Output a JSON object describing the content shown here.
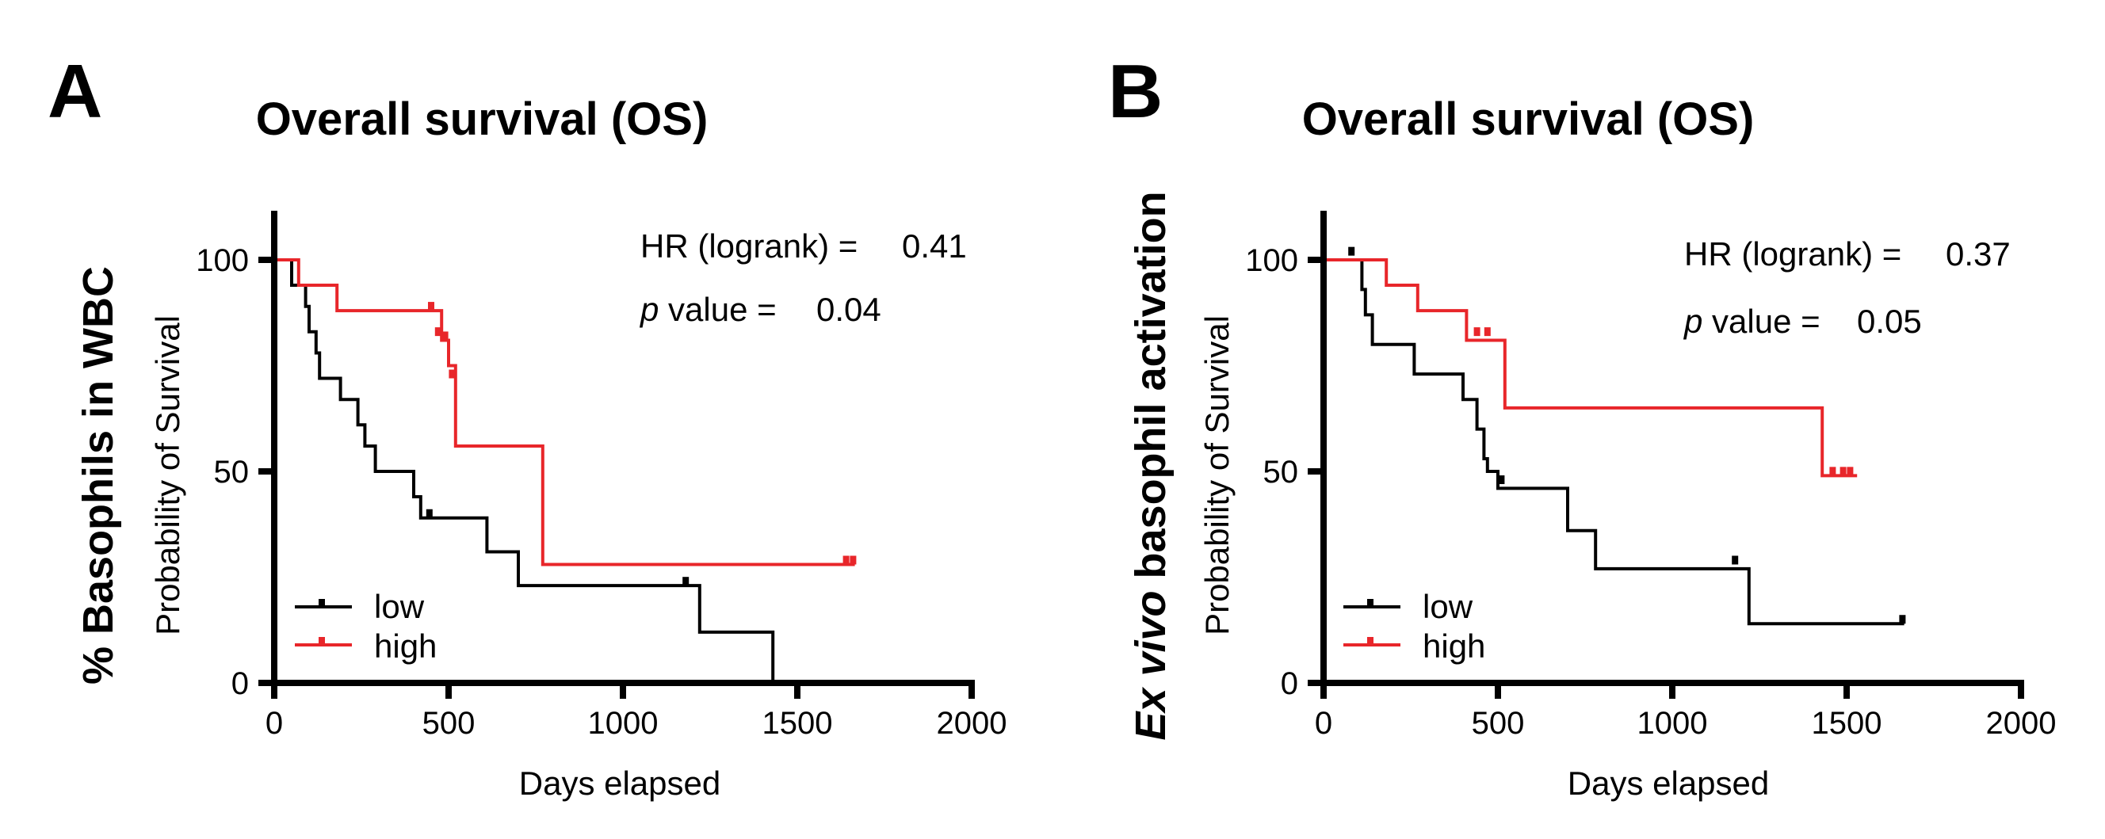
{
  "chart_data": [
    {
      "type": "line",
      "panel_letter": "A",
      "title": "Overall survival (OS)",
      "side_label": "% Basophils in WBC",
      "side_label_italic": "",
      "xlabel": "Days elapsed",
      "ylabel": "Probability of Survival",
      "xlim": [
        0,
        2000
      ],
      "ylim": [
        0,
        100
      ],
      "xticks": [
        0,
        500,
        1000,
        1500,
        2000
      ],
      "yticks": [
        0,
        50,
        100
      ],
      "hr_label": "HR (logrank) =",
      "hr_value": "0.41",
      "p_label_italic": "p",
      "p_label": " value =",
      "p_value": "0.04",
      "series": [
        {
          "name": "low",
          "color": "#000000",
          "steps": [
            [
              0,
              100
            ],
            [
              50,
              94
            ],
            [
              90,
              89
            ],
            [
              100,
              83
            ],
            [
              120,
              78
            ],
            [
              130,
              72
            ],
            [
              190,
              67
            ],
            [
              240,
              61
            ],
            [
              260,
              56
            ],
            [
              290,
              50
            ],
            [
              400,
              44
            ],
            [
              420,
              39
            ],
            [
              610,
              31
            ],
            [
              700,
              23
            ],
            [
              1220,
              12
            ],
            [
              1430,
              0
            ]
          ],
          "end_x": 1430,
          "censors": [
            [
              445,
              39
            ],
            [
              1180,
              23
            ]
          ]
        },
        {
          "name": "high",
          "color": "#e8262a",
          "steps": [
            [
              0,
              100
            ],
            [
              70,
              94
            ],
            [
              180,
              88
            ],
            [
              450,
              88
            ],
            [
              480,
              81
            ],
            [
              500,
              75
            ],
            [
              520,
              56
            ],
            [
              700,
              56
            ],
            [
              770,
              28
            ]
          ],
          "end_x": 1665,
          "censors": [
            [
              450,
              88
            ],
            [
              470,
              82
            ],
            [
              490,
              81
            ],
            [
              510,
              72
            ],
            [
              1640,
              28
            ],
            [
              1660,
              28
            ]
          ]
        }
      ]
    },
    {
      "type": "line",
      "panel_letter": "B",
      "title": "Overall survival (OS)",
      "side_label": " basophil activation",
      "side_label_italic": "Ex vivo",
      "xlabel": "Days elapsed",
      "ylabel": "Probability of Survival",
      "xlim": [
        0,
        2000
      ],
      "ylim": [
        0,
        100
      ],
      "xticks": [
        0,
        500,
        1000,
        1500,
        2000
      ],
      "yticks": [
        0,
        50,
        100
      ],
      "hr_label": "HR (logrank) =",
      "hr_value": "0.37",
      "p_label_italic": "p",
      "p_label": " value =",
      "p_value": "0.05",
      "series": [
        {
          "name": "low",
          "color": "#000000",
          "steps": [
            [
              0,
              100
            ],
            [
              110,
              93
            ],
            [
              120,
              87
            ],
            [
              140,
              80
            ],
            [
              260,
              73
            ],
            [
              400,
              67
            ],
            [
              440,
              60
            ],
            [
              460,
              53
            ],
            [
              470,
              50
            ],
            [
              500,
              46
            ],
            [
              700,
              36
            ],
            [
              780,
              27
            ],
            [
              1220,
              14
            ]
          ],
          "end_x": 1665,
          "censors": [
            [
              80,
              101
            ],
            [
              510,
              47
            ],
            [
              1180,
              28
            ],
            [
              1660,
              14
            ]
          ]
        },
        {
          "name": "high",
          "color": "#e8262a",
          "steps": [
            [
              0,
              100
            ],
            [
              180,
              94
            ],
            [
              270,
              88
            ],
            [
              410,
              81
            ],
            [
              520,
              65
            ],
            [
              1430,
              49
            ]
          ],
          "end_x": 1530,
          "censors": [
            [
              440,
              82
            ],
            [
              470,
              82
            ],
            [
              1460,
              49
            ],
            [
              1490,
              49
            ],
            [
              1510,
              49
            ]
          ]
        }
      ]
    }
  ]
}
